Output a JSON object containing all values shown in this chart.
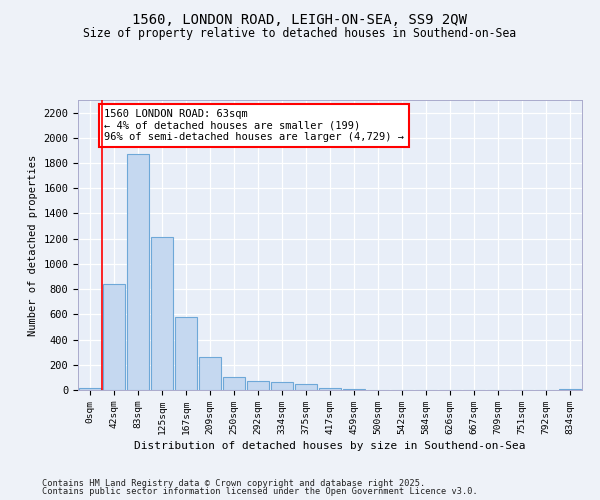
{
  "title1": "1560, LONDON ROAD, LEIGH-ON-SEA, SS9 2QW",
  "title2": "Size of property relative to detached houses in Southend-on-Sea",
  "xlabel": "Distribution of detached houses by size in Southend-on-Sea",
  "ylabel": "Number of detached properties",
  "bar_labels": [
    "0sqm",
    "42sqm",
    "83sqm",
    "125sqm",
    "167sqm",
    "209sqm",
    "250sqm",
    "292sqm",
    "334sqm",
    "375sqm",
    "417sqm",
    "459sqm",
    "500sqm",
    "542sqm",
    "584sqm",
    "626sqm",
    "667sqm",
    "709sqm",
    "751sqm",
    "792sqm",
    "834sqm"
  ],
  "bar_values": [
    15,
    840,
    1870,
    1210,
    580,
    260,
    100,
    75,
    60,
    45,
    18,
    8,
    0,
    0,
    0,
    0,
    0,
    0,
    0,
    0,
    5
  ],
  "bar_color": "#c5d8f0",
  "bar_edge_color": "#6ea8d8",
  "annotation_text": "1560 LONDON ROAD: 63sqm\n← 4% of detached houses are smaller (199)\n96% of semi-detached houses are larger (4,729) →",
  "red_line_x": 1.5,
  "ylim": [
    0,
    2300
  ],
  "yticks": [
    0,
    200,
    400,
    600,
    800,
    1000,
    1200,
    1400,
    1600,
    1800,
    2000,
    2200
  ],
  "plot_bg": "#e8eef8",
  "fig_bg": "#eef2f8",
  "grid_color": "#ffffff",
  "footer1": "Contains HM Land Registry data © Crown copyright and database right 2025.",
  "footer2": "Contains public sector information licensed under the Open Government Licence v3.0."
}
